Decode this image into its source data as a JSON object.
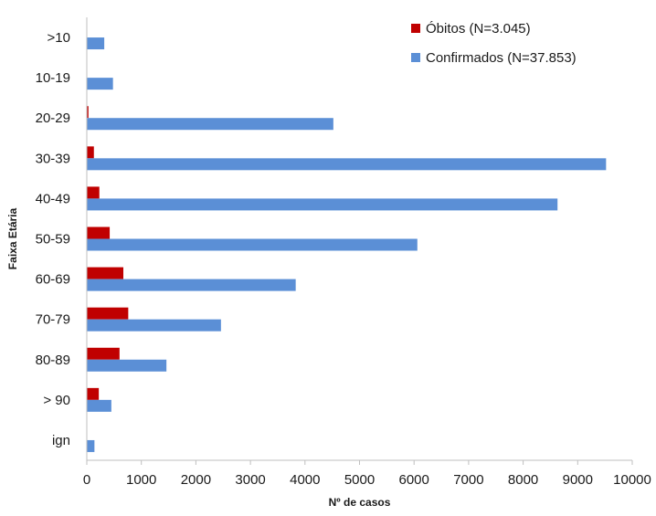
{
  "chart_data": {
    "type": "bar",
    "orientation": "horizontal",
    "categories": [
      ">10",
      "10-19",
      "20-29",
      "30-39",
      "40-49",
      "50-59",
      "60-69",
      "70-79",
      "80-89",
      "> 90",
      "ign"
    ],
    "series": [
      {
        "name": "Óbitos (N=3.045)",
        "color": "#c00000",
        "values": [
          5,
          8,
          30,
          130,
          230,
          420,
          670,
          760,
          600,
          220,
          0
        ]
      },
      {
        "name": "Confirmados (N=37.853)",
        "color": "#5b8fd6",
        "values": [
          320,
          480,
          4520,
          9520,
          8630,
          6060,
          3830,
          2460,
          1460,
          450,
          140
        ]
      }
    ],
    "xlabel": "Nº de casos",
    "ylabel": "Faixa Etária",
    "xlim": [
      0,
      10000
    ],
    "xticks": [
      0,
      1000,
      2000,
      3000,
      4000,
      5000,
      6000,
      7000,
      8000,
      9000,
      10000
    ],
    "grid": false,
    "legend_position": "top-right"
  }
}
